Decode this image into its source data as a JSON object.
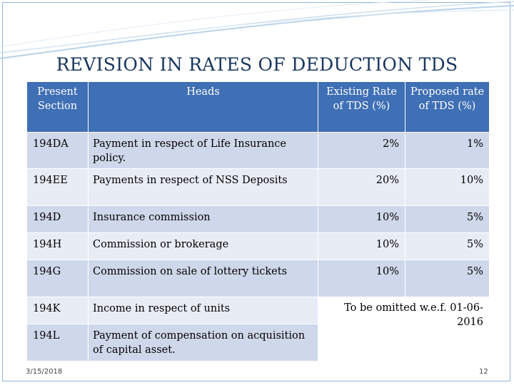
{
  "slide": {
    "title": "REVISION IN RATES OF DEDUCTION TDS",
    "footer_date": "3/15/2018",
    "page_number": "12",
    "colors": {
      "header_bg": "#3f6fb4",
      "row_dark": "#cfd8ea",
      "row_light": "#e8ecf5",
      "title": "#17365d"
    }
  },
  "table": {
    "headers": {
      "section": "Present Section",
      "heads": "Heads",
      "existing": "Existing Rate of TDS (%)",
      "proposed": "Proposed rate of TDS (%)"
    },
    "rows": [
      {
        "section": "194DA",
        "head": "Payment in respect of Life Insurance policy.",
        "existing": "2%",
        "proposed": "1%"
      },
      {
        "section": "194EE",
        "head": "Payments in respect of NSS Deposits",
        "existing": "20%",
        "proposed": "10%"
      },
      {
        "section": "194D",
        "head": "Insurance commission",
        "existing": "10%",
        "proposed": "5%"
      },
      {
        "section": "194H",
        "head": "Commission or brokerage",
        "existing": "10%",
        "proposed": "5%"
      },
      {
        "section": "194G",
        "head": "Commission on sale of lottery tickets",
        "existing": "10%",
        "proposed": "5%"
      },
      {
        "section": "194K",
        "head": "Income in respect of units"
      },
      {
        "section": "194L",
        "head": "Payment of compensation on acquisition of capital  asset."
      }
    ],
    "omitted_note": "To be omitted w.e.f. 01-06-2016"
  }
}
